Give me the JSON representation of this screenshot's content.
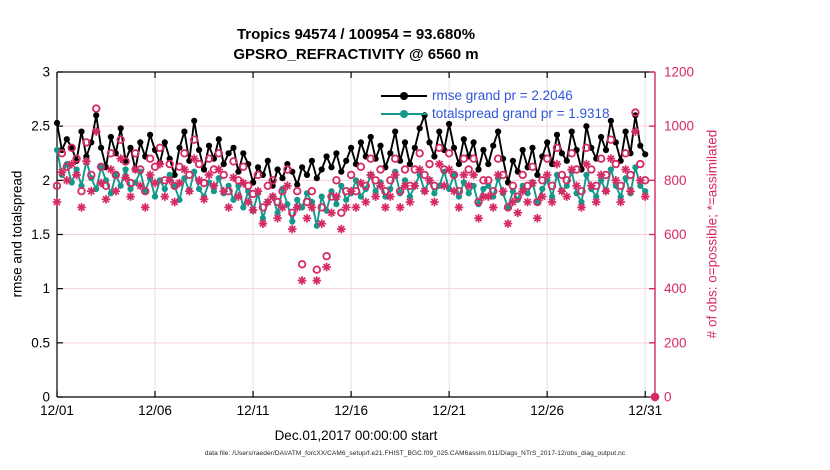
{
  "header": {
    "title_line1": "Tropics 94574 / 100954 = 93.680%",
    "title_line2": "GPSRO_REFRACTIVITY @ 6560 m"
  },
  "footer": {
    "data_file": "data file: /Users/raeder/DAI/ATM_forcXX/CAM6_setup/f.e21.FHIST_BGC.f09_025.CAM6assim.011/Diags_NTrS_2017-12/obs_diag_output.nc"
  },
  "colors": {
    "rmse": "#000000",
    "spread": "#13988b",
    "obs": "#d62a63",
    "legend_text": "#3056d9",
    "grid_h": "#f6d2dc",
    "grid_v": "#eedbe2",
    "axis": "#000000"
  },
  "chart_data": {
    "type": "line+scatter",
    "title": "Tropics 94574 / 100954 = 93.680%",
    "subtitle": "GPSRO_REFRACTIVITY @ 6560 m",
    "xlabel": "Dec.01,2017 00:00:00 start",
    "ylabel_left": "rmse and totalspread",
    "ylabel_right": "# of obs: o=possible; *=assimilated",
    "x_range": [
      1,
      31.5
    ],
    "x_ticks": {
      "values": [
        1,
        6,
        11,
        16,
        21,
        26,
        31
      ],
      "labels": [
        "12/01",
        "12/06",
        "12/11",
        "12/16",
        "12/21",
        "12/26",
        "12/31"
      ]
    },
    "y_left": {
      "min": 0,
      "max": 3,
      "ticks": [
        0,
        0.5,
        1,
        1.5,
        2,
        2.5,
        3
      ],
      "tick_labels": [
        "0",
        "0.5",
        "1",
        "1.5",
        "2",
        "2.5",
        "3"
      ]
    },
    "y_right": {
      "min": 0,
      "max": 1200,
      "ticks": [
        0,
        200,
        400,
        600,
        800,
        1000,
        1200
      ],
      "tick_labels": [
        "0",
        "200",
        "400",
        "600",
        "800",
        "1000",
        "1200"
      ]
    },
    "x_start_day": 1,
    "x_step_days": 0.25,
    "grid": true,
    "legend_position": "top-inside",
    "rmse_grand_pr": 2.2046,
    "totalspread_grand_pr": 1.9318,
    "series": [
      {
        "name": "rmse grand pr = 2.2046",
        "type": "line",
        "axis": "left",
        "marker": "filled-circle",
        "values": [
          2.53,
          2.28,
          2.38,
          2.3,
          2.18,
          2.45,
          2.22,
          2.35,
          2.6,
          2.3,
          2.12,
          2.4,
          2.25,
          2.48,
          2.18,
          2.3,
          2.1,
          2.35,
          2.22,
          2.42,
          2.28,
          2.16,
          2.35,
          2.2,
          2.05,
          2.3,
          2.45,
          2.18,
          2.55,
          2.28,
          2.1,
          2.32,
          2.2,
          2.38,
          2.15,
          2.25,
          2.3,
          2.08,
          2.25,
          2.15,
          1.98,
          2.12,
          2.05,
          2.18,
          1.95,
          2.1,
          2.02,
          2.15,
          2.08,
          1.96,
          2.12,
          2.05,
          2.18,
          2.02,
          2.1,
          2.22,
          2.12,
          2.25,
          2.08,
          2.18,
          2.3,
          2.15,
          2.35,
          2.22,
          2.4,
          2.2,
          2.32,
          2.12,
          2.25,
          2.45,
          2.18,
          2.35,
          2.15,
          2.3,
          2.48,
          2.6,
          2.35,
          2.22,
          2.45,
          2.28,
          2.52,
          2.3,
          2.15,
          2.38,
          2.22,
          2.35,
          2.1,
          2.28,
          2.15,
          2.32,
          2.45,
          2.2,
          1.98,
          2.18,
          2.08,
          2.28,
          2.12,
          2.3,
          2.05,
          2.22,
          2.35,
          2.15,
          2.42,
          2.25,
          2.18,
          2.45,
          2.28,
          2.1,
          2.5,
          2.3,
          2.2,
          2.4,
          2.28,
          2.55,
          2.35,
          2.18,
          2.45,
          2.25,
          2.6,
          2.32,
          2.24
        ]
      },
      {
        "name": "totalspread grand pr = 1.9318",
        "type": "line",
        "axis": "left",
        "marker": "filled-circle",
        "values": [
          2.28,
          2.05,
          2.15,
          1.98,
          2.1,
          1.95,
          2.18,
          2.02,
          1.92,
          2.12,
          2.0,
          1.88,
          2.05,
          1.95,
          2.1,
          1.92,
          1.98,
          2.08,
          1.9,
          2.02,
          1.85,
          2.0,
          1.92,
          2.05,
          1.95,
          1.82,
          2.02,
          1.9,
          2.08,
          1.92,
          1.85,
          1.98,
          1.9,
          2.02,
          1.88,
          1.95,
          1.82,
          1.95,
          1.75,
          1.9,
          1.72,
          1.88,
          1.65,
          1.8,
          1.85,
          1.7,
          1.92,
          1.78,
          1.62,
          1.82,
          1.75,
          1.88,
          1.8,
          1.58,
          1.85,
          1.72,
          1.9,
          1.78,
          1.95,
          1.82,
          1.88,
          2.0,
          1.85,
          1.92,
          2.05,
          1.9,
          1.98,
          1.85,
          1.92,
          2.08,
          1.88,
          2.0,
          1.85,
          1.95,
          2.05,
          1.9,
          2.0,
          1.88,
          1.95,
          2.08,
          1.92,
          2.05,
          1.85,
          1.98,
          1.88,
          1.95,
          1.78,
          1.92,
          1.95,
          1.85,
          2.02,
          1.88,
          1.75,
          1.9,
          1.82,
          1.95,
          1.88,
          1.98,
          1.8,
          1.92,
          2.0,
          1.85,
          2.05,
          1.9,
          1.95,
          2.08,
          1.88,
          1.8,
          2.05,
          1.92,
          1.85,
          2.0,
          1.9,
          2.1,
          1.95,
          1.85,
          2.02,
          1.88,
          2.12,
          1.95,
          1.9
        ]
      },
      {
        "name": "possible",
        "type": "scatter",
        "axis": "right",
        "marker": "open-circle",
        "values": [
          780,
          900,
          850,
          920,
          880,
          760,
          940,
          820,
          1065,
          850,
          780,
          900,
          820,
          950,
          870,
          790,
          900,
          840,
          760,
          880,
          850,
          920,
          800,
          860,
          780,
          850,
          900,
          820,
          950,
          860,
          790,
          880,
          840,
          900,
          820,
          760,
          870,
          800,
          850,
          780,
          750,
          820,
          700,
          780,
          800,
          720,
          760,
          840,
          680,
          760,
          490,
          720,
          760,
          470,
          700,
          520,
          740,
          800,
          680,
          760,
          820,
          760,
          850,
          780,
          880,
          800,
          840,
          760,
          800,
          880,
          760,
          840,
          780,
          840,
          900,
          820,
          860,
          780,
          920,
          840,
          900,
          820,
          760,
          880,
          840,
          880,
          720,
          800,
          800,
          760,
          880,
          820,
          700,
          780,
          740,
          820,
          780,
          850,
          720,
          800,
          880,
          780,
          920,
          820,
          800,
          900,
          840,
          760,
          920,
          840,
          780,
          880,
          820,
          950,
          860,
          780,
          900,
          820,
          1050,
          860,
          800
        ]
      },
      {
        "name": "assimilated",
        "type": "scatter",
        "axis": "right",
        "marker": "asterisk",
        "values": [
          720,
          830,
          800,
          860,
          820,
          700,
          870,
          760,
          980,
          790,
          730,
          840,
          760,
          880,
          810,
          740,
          840,
          780,
          700,
          820,
          790,
          860,
          740,
          800,
          720,
          790,
          840,
          760,
          880,
          800,
          730,
          820,
          780,
          840,
          760,
          700,
          810,
          740,
          790,
          720,
          690,
          760,
          640,
          720,
          740,
          660,
          700,
          780,
          620,
          700,
          430,
          660,
          700,
          430,
          640,
          480,
          680,
          740,
          620,
          700,
          760,
          700,
          790,
          720,
          820,
          740,
          780,
          700,
          740,
          820,
          700,
          780,
          720,
          780,
          840,
          760,
          800,
          720,
          860,
          780,
          840,
          760,
          700,
          820,
          780,
          820,
          660,
          740,
          740,
          700,
          820,
          760,
          640,
          720,
          680,
          760,
          720,
          790,
          660,
          740,
          820,
          720,
          860,
          760,
          740,
          840,
          780,
          700,
          860,
          780,
          720,
          820,
          760,
          880,
          800,
          720,
          840,
          760,
          980,
          800,
          740
        ]
      }
    ],
    "terminal_marker": {
      "day": 31.5,
      "value": 0
    }
  }
}
